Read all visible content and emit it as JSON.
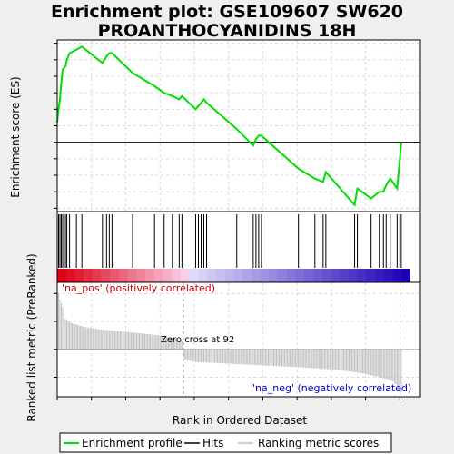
{
  "title_line1": "Enrichment plot: GSE109607 SW620",
  "title_line2": "PROANTHOCYANIDINS 18H",
  "colors": {
    "es_line": "#00dd00",
    "hits": "#000000",
    "ranking": "#bebebe",
    "zero_line": "#808080",
    "pos_label": "#cc0000",
    "neg_label": "#0000cc",
    "grid": "#d9d9d9"
  },
  "chart_data": [
    {
      "type": "line",
      "panel": "enrichment-score",
      "ylabel": "Enrichment score (ES)",
      "ylim": [
        -0.21,
        0.31
      ],
      "yticks": [
        "0.30",
        "0.25",
        "0.20",
        "0.15",
        "0.10",
        "0.05",
        "0.00",
        "-0.05",
        "-0.10",
        "-0.15",
        "-0.20"
      ],
      "grid": true,
      "series": [
        {
          "name": "Enrichment profile",
          "x": [
            0,
            1,
            2,
            3,
            4,
            6,
            7,
            9,
            14,
            18,
            33,
            36,
            38,
            40,
            55,
            71,
            78,
            84,
            89,
            91,
            101,
            103,
            105,
            107,
            109,
            131,
            143,
            145,
            147,
            149,
            176,
            188,
            194,
            196,
            217,
            219,
            229,
            235,
            238,
            240,
            243,
            248,
            250,
            251
          ],
          "y": [
            0.06,
            0.1,
            0.13,
            0.18,
            0.22,
            0.23,
            0.25,
            0.27,
            0.28,
            0.29,
            0.24,
            0.26,
            0.27,
            0.27,
            0.21,
            0.17,
            0.15,
            0.14,
            0.13,
            0.14,
            0.1,
            0.11,
            0.12,
            0.13,
            0.12,
            0.04,
            -0.01,
            0.01,
            0.02,
            0.02,
            -0.08,
            -0.11,
            -0.12,
            -0.09,
            -0.19,
            -0.14,
            -0.17,
            -0.15,
            -0.15,
            -0.13,
            -0.11,
            -0.14,
            -0.05,
            0.0
          ]
        }
      ]
    },
    {
      "type": "bar",
      "panel": "hits",
      "name": "Hits",
      "positions": [
        1,
        2,
        3,
        4,
        6,
        7,
        9,
        14,
        18,
        33,
        36,
        38,
        40,
        55,
        71,
        78,
        84,
        89,
        91,
        101,
        103,
        105,
        107,
        109,
        131,
        143,
        145,
        147,
        149,
        176,
        188,
        194,
        196,
        217,
        219,
        229,
        235,
        238,
        240,
        243,
        248,
        250,
        251
      ]
    },
    {
      "type": "bar",
      "panel": "ranked-list-metric",
      "name": "Ranking metric scores",
      "ylabel": "Ranked list metric (PreRanked)",
      "xlabel": "Rank in Ordered Dataset",
      "xlim": [
        0,
        265
      ],
      "ylim": [
        -1.7,
        2.4
      ],
      "xticks": [
        "0",
        "25",
        "50",
        "75",
        "100",
        "125",
        "150",
        "175",
        "200",
        "225",
        "250"
      ],
      "yticks": [
        "2",
        "1",
        "0",
        "-1"
      ],
      "x_ranks": [
        0,
        2,
        4,
        6,
        10,
        20,
        30,
        45,
        60,
        75,
        85,
        91,
        92,
        93,
        100,
        120,
        140,
        160,
        180,
        200,
        215,
        225,
        235,
        240,
        245,
        248,
        250,
        251
      ],
      "values": [
        2.2,
        1.8,
        1.5,
        1.1,
        0.95,
        0.8,
        0.72,
        0.65,
        0.58,
        0.5,
        0.4,
        0.3,
        -0.3,
        -0.35,
        -0.45,
        -0.5,
        -0.55,
        -0.6,
        -0.65,
        -0.72,
        -0.8,
        -0.88,
        -1.0,
        -1.05,
        -1.15,
        -1.3,
        -1.45,
        -1.55
      ],
      "zero_cross_rank": 92
    }
  ],
  "annotations": {
    "pos_label": "'na_pos' (positively correlated)",
    "neg_label": "'na_neg' (negatively correlated)",
    "zero_cross": "Zero cross at 92"
  },
  "legend": {
    "placement": "bottom",
    "items": [
      "Enrichment profile",
      "Hits",
      "Ranking metric scores"
    ]
  }
}
